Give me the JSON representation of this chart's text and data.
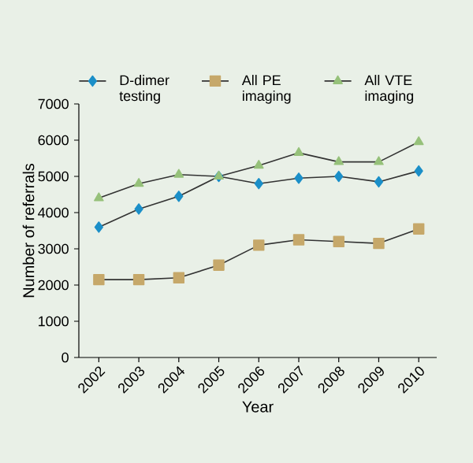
{
  "chart_data": {
    "type": "line",
    "xlabel": "Year",
    "ylabel": "Number of referrals",
    "categories": [
      "2002",
      "2003",
      "2004",
      "2005",
      "2006",
      "2007",
      "2008",
      "2009",
      "2010"
    ],
    "ylim": [
      0,
      7000
    ],
    "yticks": [
      0,
      1000,
      2000,
      3000,
      4000,
      5000,
      6000,
      7000
    ],
    "legend": "top",
    "grid": false,
    "series": [
      {
        "name": "D-dimer testing",
        "color": "#1b8fc8",
        "marker": "diamond",
        "values": [
          3600,
          4100,
          4450,
          5000,
          4800,
          4950,
          5000,
          4850,
          5150
        ]
      },
      {
        "name": "All PE imaging",
        "color": "#c6a86a",
        "marker": "square",
        "values": [
          2150,
          2150,
          2200,
          2550,
          3100,
          3250,
          3200,
          3150,
          3550
        ]
      },
      {
        "name": "All VTE imaging",
        "color": "#96c17a",
        "marker": "triangle",
        "values": [
          4400,
          4800,
          5050,
          5000,
          5300,
          5650,
          5400,
          5400,
          5950
        ]
      }
    ]
  }
}
